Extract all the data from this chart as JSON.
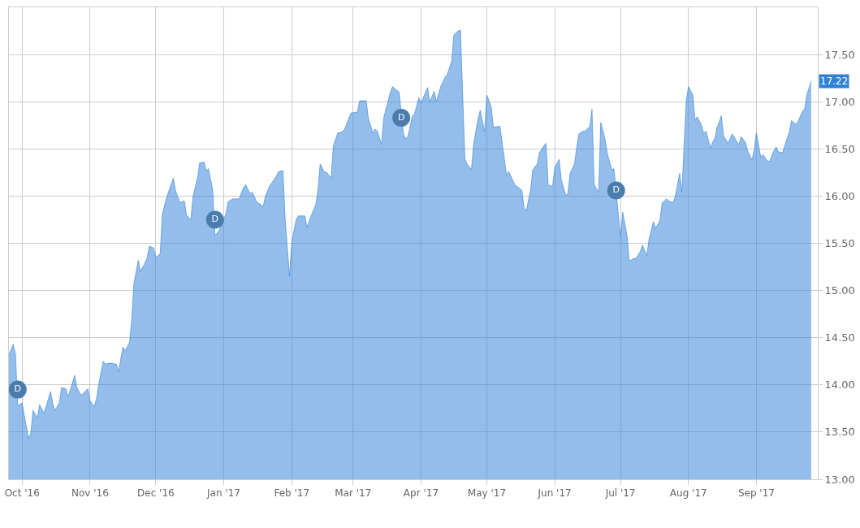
{
  "chart_data": {
    "type": "area",
    "color": "#2f82d8",
    "x": [
      "2016-09-25",
      "2016-09-27",
      "2016-09-28",
      "2016-09-29",
      "2016-10-01",
      "2016-10-02",
      "2016-10-04",
      "2016-10-05",
      "2016-10-06",
      "2016-10-08",
      "2016-10-09",
      "2016-10-11",
      "2016-10-14",
      "2016-10-15",
      "2016-10-16",
      "2016-10-18",
      "2016-10-19",
      "2016-10-21",
      "2016-10-22",
      "2016-10-25",
      "2016-10-26",
      "2016-10-28",
      "2016-10-31",
      "2016-11-01",
      "2016-11-03",
      "2016-11-04",
      "2016-11-05",
      "2016-11-07",
      "2016-11-08",
      "2016-11-10",
      "2016-11-13",
      "2016-11-14",
      "2016-11-16",
      "2016-11-17",
      "2016-11-19",
      "2016-11-20",
      "2016-11-21",
      "2016-11-23",
      "2016-11-24",
      "2016-11-26",
      "2016-11-27",
      "2016-11-28",
      "2016-11-30",
      "2016-12-01",
      "2016-12-03",
      "2016-12-04",
      "2016-12-06",
      "2016-12-09",
      "2016-12-10",
      "2016-12-12",
      "2016-12-14",
      "2016-12-15",
      "2016-12-17",
      "2016-12-18",
      "2016-12-20",
      "2016-12-21",
      "2016-12-23",
      "2016-12-24",
      "2016-12-25",
      "2016-12-27",
      "2016-12-28",
      "2016-12-30",
      "2017-01-02",
      "2017-01-03",
      "2017-01-05",
      "2017-01-08",
      "2017-01-10",
      "2017-01-11",
      "2017-01-13",
      "2017-01-14",
      "2017-01-16",
      "2017-01-19",
      "2017-01-20",
      "2017-01-22",
      "2017-01-25",
      "2017-01-26",
      "2017-01-28",
      "2017-01-29",
      "2017-01-31",
      "2017-02-01",
      "2017-02-03",
      "2017-02-04",
      "2017-02-07",
      "2017-02-08",
      "2017-02-10",
      "2017-02-12",
      "2017-02-13",
      "2017-02-14",
      "2017-02-16",
      "2017-02-17",
      "2017-02-19",
      "2017-02-20",
      "2017-02-22",
      "2017-02-23",
      "2017-02-25",
      "2017-02-28",
      "2017-03-03",
      "2017-03-04",
      "2017-03-07",
      "2017-03-08",
      "2017-03-10",
      "2017-03-11",
      "2017-03-12",
      "2017-03-14",
      "2017-03-15",
      "2017-03-18",
      "2017-03-19",
      "2017-03-21",
      "2017-03-22",
      "2017-03-24",
      "2017-03-25",
      "2017-03-26",
      "2017-03-28",
      "2017-03-29",
      "2017-03-31",
      "2017-04-01",
      "2017-04-04",
      "2017-04-05",
      "2017-04-07",
      "2017-04-08",
      "2017-04-10",
      "2017-04-12",
      "2017-04-13",
      "2017-04-15",
      "2017-04-16",
      "2017-04-18",
      "2017-04-19",
      "2017-04-21",
      "2017-04-22",
      "2017-04-24",
      "2017-04-25",
      "2017-04-27",
      "2017-04-28",
      "2017-04-30",
      "2017-05-01",
      "2017-05-03",
      "2017-05-04",
      "2017-05-07",
      "2017-05-10",
      "2017-05-11",
      "2017-05-13",
      "2017-05-14",
      "2017-05-15",
      "2017-05-17",
      "2017-05-18",
      "2017-05-19",
      "2017-05-21",
      "2017-05-22",
      "2017-05-24",
      "2017-05-25",
      "2017-05-27",
      "2017-05-28",
      "2017-05-29",
      "2017-05-31",
      "2017-06-01",
      "2017-06-03",
      "2017-06-04",
      "2017-06-06",
      "2017-06-07",
      "2017-06-08",
      "2017-06-10",
      "2017-06-11",
      "2017-06-12",
      "2017-06-14",
      "2017-06-15",
      "2017-06-17",
      "2017-06-18",
      "2017-06-19",
      "2017-06-21",
      "2017-06-22",
      "2017-06-24",
      "2017-06-25",
      "2017-06-27",
      "2017-06-28",
      "2017-07-01",
      "2017-07-02",
      "2017-07-04",
      "2017-07-05",
      "2017-07-07",
      "2017-07-08",
      "2017-07-10",
      "2017-07-11",
      "2017-07-13",
      "2017-07-14",
      "2017-07-16",
      "2017-07-17",
      "2017-07-19",
      "2017-07-20",
      "2017-07-22",
      "2017-07-23",
      "2017-07-25",
      "2017-07-26",
      "2017-07-28",
      "2017-07-29",
      "2017-07-31",
      "2017-08-01",
      "2017-08-03",
      "2017-08-04",
      "2017-08-05",
      "2017-08-07",
      "2017-08-08",
      "2017-08-09",
      "2017-08-11",
      "2017-08-12",
      "2017-08-13",
      "2017-08-14",
      "2017-08-16",
      "2017-08-17",
      "2017-08-19",
      "2017-08-20",
      "2017-08-21",
      "2017-08-23",
      "2017-08-24",
      "2017-08-25",
      "2017-08-27",
      "2017-08-28",
      "2017-08-30",
      "2017-08-31",
      "2017-09-01",
      "2017-09-03",
      "2017-09-04",
      "2017-09-06",
      "2017-09-07",
      "2017-09-09",
      "2017-09-10",
      "2017-09-11",
      "2017-09-13",
      "2017-09-14",
      "2017-09-16",
      "2017-09-17",
      "2017-09-19",
      "2017-09-20",
      "2017-09-22",
      "2017-09-23",
      "2017-09-24",
      "2017-09-26"
    ],
    "values": [
      14.32,
      14.43,
      14.32,
      13.78,
      13.81,
      13.68,
      13.43,
      13.49,
      13.73,
      13.65,
      13.79,
      13.7,
      13.93,
      13.8,
      13.73,
      13.81,
      13.97,
      13.96,
      13.87,
      14.1,
      13.97,
      13.89,
      13.96,
      13.83,
      13.77,
      13.86,
      14.01,
      14.25,
      14.22,
      14.23,
      14.22,
      14.14,
      14.4,
      14.36,
      14.45,
      14.68,
      15.07,
      15.32,
      15.2,
      15.29,
      15.34,
      15.47,
      15.45,
      15.35,
      15.39,
      15.81,
      15.99,
      16.19,
      16.06,
      15.93,
      15.95,
      15.8,
      15.75,
      16.0,
      16.19,
      16.35,
      16.36,
      16.27,
      16.29,
      16.06,
      15.58,
      15.64,
      15.81,
      15.94,
      15.97,
      15.97,
      16.09,
      16.12,
      16.03,
      16.04,
      15.94,
      15.89,
      16.0,
      16.11,
      16.21,
      16.26,
      16.27,
      15.76,
      15.15,
      15.51,
      15.75,
      15.79,
      15.79,
      15.67,
      15.8,
      15.91,
      16.07,
      16.34,
      16.25,
      16.25,
      16.19,
      16.53,
      16.67,
      16.67,
      16.7,
      16.88,
      16.89,
      17.01,
      17.01,
      16.82,
      16.67,
      16.71,
      16.69,
      16.55,
      16.83,
      17.1,
      17.16,
      17.12,
      17.1,
      16.66,
      16.61,
      16.63,
      16.84,
      16.87,
      17.04,
      16.99,
      17.15,
      17.0,
      17.11,
      17.0,
      17.16,
      17.26,
      17.29,
      17.43,
      17.71,
      17.75,
      17.76,
      16.4,
      16.34,
      16.28,
      16.55,
      16.82,
      16.91,
      16.68,
      17.07,
      16.95,
      16.73,
      16.74,
      16.22,
      16.26,
      16.16,
      16.11,
      16.1,
      16.06,
      15.88,
      15.84,
      16.07,
      16.28,
      16.34,
      16.46,
      16.53,
      16.56,
      16.12,
      16.1,
      16.3,
      16.39,
      16.17,
      16.01,
      16.02,
      16.24,
      16.34,
      16.51,
      16.66,
      16.69,
      16.69,
      16.74,
      16.92,
      16.12,
      16.04,
      16.78,
      16.6,
      16.45,
      16.28,
      16.29,
      15.57,
      15.83,
      15.58,
      15.31,
      15.34,
      15.34,
      15.41,
      15.48,
      15.37,
      15.54,
      15.73,
      15.66,
      15.74,
      15.93,
      15.97,
      15.95,
      15.93,
      16.0,
      16.24,
      16.04,
      17.01,
      17.16,
      17.07,
      16.8,
      16.84,
      16.75,
      16.66,
      16.69,
      16.51,
      16.57,
      16.61,
      16.72,
      16.85,
      16.64,
      16.56,
      16.61,
      16.66,
      16.58,
      16.54,
      16.63,
      16.57,
      16.48,
      16.38,
      16.49,
      16.67,
      16.41,
      16.44,
      16.37,
      16.37,
      16.48,
      16.52,
      16.47,
      16.46,
      16.54,
      16.68,
      16.8,
      16.76,
      16.79,
      16.9,
      16.92,
      17.07,
      17.22
    ],
    "xlim": [
      "2016-09-25",
      "2017-09-29"
    ],
    "xticks": [
      {
        "value": "2016-10-01",
        "label": "Oct '16"
      },
      {
        "value": "2016-11-01",
        "label": "Nov '16"
      },
      {
        "value": "2016-12-01",
        "label": "Dec '16"
      },
      {
        "value": "2017-01-01",
        "label": "Jan '17"
      },
      {
        "value": "2017-02-01",
        "label": "Feb '17"
      },
      {
        "value": "2017-03-01",
        "label": "Mar '17"
      },
      {
        "value": "2017-04-01",
        "label": "Apr '17"
      },
      {
        "value": "2017-05-01",
        "label": "May '17"
      },
      {
        "value": "2017-06-01",
        "label": "Jun '17"
      },
      {
        "value": "2017-07-01",
        "label": "Jul '17"
      },
      {
        "value": "2017-08-01",
        "label": "Aug '17"
      },
      {
        "value": "2017-09-01",
        "label": "Sep '17"
      }
    ],
    "ylim": [
      13,
      18
    ],
    "yticks": [
      {
        "value": 13,
        "label": "13.00"
      },
      {
        "value": 13.5,
        "label": "13.50"
      },
      {
        "value": 14,
        "label": "14.00"
      },
      {
        "value": 14.5,
        "label": "14.50"
      },
      {
        "value": 15,
        "label": "15.00"
      },
      {
        "value": 15.5,
        "label": "15.50"
      },
      {
        "value": 16,
        "label": "16.00"
      },
      {
        "value": 16.5,
        "label": "16.50"
      },
      {
        "value": 17,
        "label": "17.00"
      },
      {
        "value": 17.5,
        "label": "17.50"
      }
    ],
    "grid": true,
    "annotations": [
      {
        "text": "D",
        "x": "2016-09-29",
        "y": 13.95
      },
      {
        "text": "D",
        "x": "2016-12-28",
        "y": 15.75
      },
      {
        "text": "D",
        "x": "2017-03-23",
        "y": 16.83
      },
      {
        "text": "D",
        "x": "2017-06-29",
        "y": 16.06
      },
      {
        "text": "17.22",
        "x": "2017-09-26",
        "y": 17.22
      }
    ]
  }
}
